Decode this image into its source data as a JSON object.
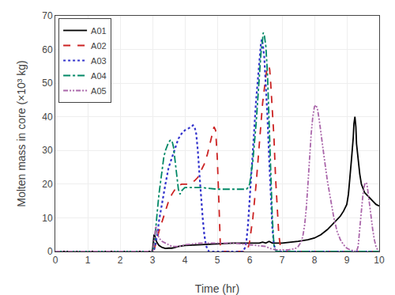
{
  "chart_data": {
    "type": "line",
    "xlabel": "Time (hr)",
    "ylabel": "Molten mass in core (×10³ kg)",
    "xlim": [
      0,
      10
    ],
    "ylim": [
      0,
      70
    ],
    "xticks": [
      0,
      1,
      2,
      3,
      4,
      5,
      6,
      7,
      8,
      9,
      10
    ],
    "yticks": [
      0,
      10,
      20,
      30,
      40,
      50,
      60,
      70
    ],
    "grid": true,
    "legend": "upper left",
    "series": [
      {
        "name": "A01",
        "color": "#000000",
        "line_style": "solid",
        "x": [
          0.0,
          2.95,
          3.0,
          3.05,
          3.08,
          3.1,
          3.15,
          3.2,
          3.3,
          3.4,
          3.5,
          3.6,
          3.7,
          3.8,
          4.0,
          4.5,
          5.0,
          5.5,
          6.0,
          6.3,
          6.4,
          6.5,
          6.6,
          6.65,
          6.7,
          7.0,
          7.5,
          7.8,
          8.0,
          8.2,
          8.4,
          8.6,
          8.8,
          8.9,
          9.0,
          9.05,
          9.1,
          9.15,
          9.2,
          9.22,
          9.25,
          9.28,
          9.3,
          9.35,
          9.4,
          9.45,
          9.5,
          9.55,
          9.6,
          9.7,
          9.8,
          9.85,
          9.9,
          10.0
        ],
        "values": [
          0.0,
          0.0,
          0.2,
          5.0,
          4.5,
          3.5,
          2.5,
          1.8,
          1.2,
          0.9,
          1.0,
          1.0,
          1.2,
          1.5,
          1.8,
          2.0,
          2.2,
          2.5,
          2.5,
          2.5,
          2.8,
          2.5,
          3.0,
          2.8,
          2.5,
          2.5,
          3.0,
          3.5,
          4.0,
          5.0,
          6.5,
          8.5,
          10.5,
          12.0,
          14.0,
          17.0,
          22.0,
          28.0,
          34.0,
          38.0,
          40.0,
          37.0,
          32.0,
          27.0,
          23.0,
          20.0,
          18.5,
          17.5,
          17.0,
          16.0,
          15.0,
          14.5,
          14.0,
          13.5
        ]
      },
      {
        "name": "A02",
        "color": "#cc2222",
        "line_style": "dashed",
        "x": [
          0.0,
          3.0,
          3.05,
          3.1,
          3.15,
          3.2,
          3.3,
          3.4,
          3.5,
          3.6,
          3.7,
          3.8,
          3.9,
          4.0,
          4.1,
          4.2,
          4.3,
          4.4,
          4.5,
          4.6,
          4.7,
          4.8,
          4.9,
          4.95,
          5.0,
          5.05,
          5.08,
          5.1,
          5.15,
          5.5,
          5.9,
          5.95,
          6.0,
          6.1,
          6.2,
          6.3,
          6.4,
          6.5,
          6.55,
          6.6,
          6.62,
          6.65,
          6.7,
          6.75,
          6.8,
          6.85,
          6.9,
          6.95,
          7.0,
          7.05,
          10.0
        ],
        "values": [
          0.0,
          0.0,
          0.5,
          2.0,
          4.0,
          6.0,
          9.0,
          12.0,
          15.0,
          17.0,
          18.5,
          19.5,
          20.0,
          20.0,
          20.0,
          20.5,
          21.0,
          22.0,
          24.0,
          26.0,
          29.0,
          33.0,
          37.0,
          36.0,
          28.0,
          15.0,
          5.0,
          0.5,
          0.0,
          0.0,
          0.0,
          1.0,
          3.0,
          10.0,
          20.0,
          32.0,
          44.0,
          52.0,
          55.0,
          55.0,
          54.0,
          50.0,
          43.0,
          34.0,
          22.0,
          12.0,
          5.0,
          1.5,
          0.5,
          0.0,
          0.0
        ]
      },
      {
        "name": "A03",
        "color": "#3333cc",
        "line_style": "dotted",
        "x": [
          0.0,
          3.0,
          3.05,
          3.1,
          3.15,
          3.2,
          3.3,
          3.4,
          3.5,
          3.6,
          3.7,
          3.8,
          3.9,
          4.0,
          4.1,
          4.2,
          4.25,
          4.3,
          4.35,
          4.4,
          4.45,
          4.5,
          4.55,
          4.6,
          4.65,
          4.7,
          4.75,
          5.0,
          5.5,
          5.8,
          5.85,
          5.9,
          5.95,
          6.0,
          6.1,
          6.2,
          6.3,
          6.35,
          6.38,
          6.4,
          6.45,
          6.5,
          6.55,
          6.6,
          6.65,
          6.7,
          6.75,
          6.8,
          6.85,
          10.0
        ],
        "values": [
          0.0,
          0.0,
          0.5,
          2.5,
          5.0,
          9.0,
          15.0,
          20.0,
          25.0,
          28.0,
          31.0,
          33.5,
          35.0,
          36.0,
          36.5,
          37.0,
          37.5,
          37.0,
          35.0,
          30.0,
          23.0,
          16.0,
          10.0,
          5.0,
          2.0,
          0.5,
          0.0,
          0.0,
          0.0,
          0.0,
          1.0,
          3.0,
          8.0,
          16.0,
          30.0,
          45.0,
          57.0,
          62.0,
          63.0,
          62.0,
          58.0,
          50.0,
          40.0,
          28.0,
          16.0,
          7.0,
          2.0,
          0.5,
          0.0,
          0.0
        ]
      },
      {
        "name": "A04",
        "color": "#008866",
        "line_style": "dashdot",
        "x": [
          0.0,
          3.0,
          3.02,
          3.05,
          3.08,
          3.1,
          3.15,
          3.2,
          3.25,
          3.3,
          3.35,
          3.4,
          3.45,
          3.5,
          3.55,
          3.6,
          3.65,
          3.7,
          3.75,
          3.8,
          3.85,
          3.9,
          3.95,
          4.0,
          4.5,
          5.0,
          5.5,
          5.9,
          5.95,
          6.0,
          6.1,
          6.2,
          6.3,
          6.35,
          6.4,
          6.42,
          6.45,
          6.5,
          6.55,
          6.6,
          6.65,
          6.7,
          6.75,
          6.8,
          6.85,
          7.0,
          10.0
        ],
        "values": [
          0.0,
          0.0,
          0.5,
          2.0,
          4.5,
          7.0,
          12.0,
          17.0,
          21.0,
          25.0,
          28.0,
          30.0,
          31.5,
          32.5,
          33.0,
          33.0,
          31.0,
          27.0,
          22.0,
          18.5,
          17.0,
          18.0,
          18.5,
          19.0,
          19.0,
          18.5,
          18.5,
          18.5,
          19.0,
          20.0,
          27.0,
          38.0,
          52.0,
          59.0,
          63.0,
          65.0,
          64.5,
          61.0,
          53.0,
          40.0,
          24.0,
          10.0,
          2.0,
          0.3,
          0.0,
          0.0,
          0.0
        ]
      },
      {
        "name": "A05",
        "color": "#aa66aa",
        "line_style": "dashdotdotted",
        "x": [
          0.0,
          3.0,
          3.02,
          3.05,
          3.08,
          3.1,
          3.12,
          3.15,
          3.2,
          3.3,
          3.4,
          3.5,
          3.6,
          3.7,
          3.8,
          4.0,
          4.5,
          5.0,
          5.5,
          6.0,
          6.5,
          6.6,
          6.7,
          6.8,
          7.0,
          7.2,
          7.4,
          7.5,
          7.6,
          7.65,
          7.7,
          7.75,
          7.8,
          7.85,
          7.9,
          7.95,
          8.0,
          8.05,
          8.1,
          8.15,
          8.2,
          8.3,
          8.4,
          8.5,
          8.6,
          8.7,
          8.8,
          8.9,
          9.0,
          9.1,
          9.2,
          9.3,
          9.35,
          9.4,
          9.45,
          9.5,
          9.55,
          9.6,
          9.62,
          9.65,
          9.7,
          9.75,
          9.8,
          9.85,
          9.9,
          9.95,
          10.0
        ],
        "values": [
          0.0,
          0.0,
          0.3,
          3.0,
          6.0,
          7.5,
          7.0,
          5.5,
          4.0,
          3.0,
          2.5,
          2.0,
          1.5,
          1.5,
          1.5,
          2.0,
          2.5,
          2.5,
          2.5,
          2.0,
          1.5,
          1.0,
          0.8,
          0.5,
          0.5,
          0.5,
          0.8,
          1.5,
          3.0,
          5.0,
          8.0,
          13.0,
          20.0,
          28.0,
          35.0,
          40.0,
          43.0,
          43.5,
          42.0,
          39.0,
          35.0,
          28.0,
          21.0,
          15.0,
          10.0,
          6.0,
          3.5,
          2.0,
          1.0,
          0.5,
          0.2,
          0.0,
          1.5,
          6.0,
          12.0,
          17.0,
          20.0,
          20.5,
          20.0,
          18.0,
          14.0,
          10.0,
          6.5,
          3.5,
          1.5,
          0.5,
          0.2
        ]
      }
    ]
  }
}
